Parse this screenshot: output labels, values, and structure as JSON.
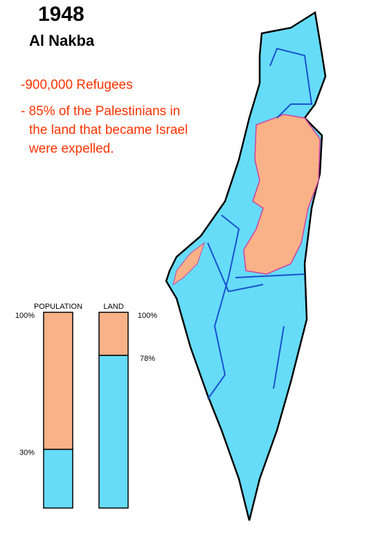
{
  "header": {
    "title": "1948",
    "subtitle": "Al Nakba"
  },
  "bullets": [
    [
      "-900,000 Refugees"
    ],
    [
      "- 85% of the Palestinians in",
      "the land that became Israel",
      "were expelled."
    ]
  ],
  "chart_data": {
    "type": "bar",
    "stacked": true,
    "categories": [
      "POPULATION",
      "LAND"
    ],
    "series": [
      {
        "color": "#66dcf8",
        "values": [
          30,
          78
        ]
      },
      {
        "color": "#f9b287",
        "values": [
          70,
          22
        ]
      }
    ],
    "ylim": [
      0,
      100
    ],
    "yticks": [
      {
        "value": 30,
        "label": "30%"
      },
      {
        "value": 100,
        "label": "100%"
      }
    ],
    "y2lim": [
      0,
      100
    ],
    "y2ticks": [
      {
        "value": 78,
        "label": "78%"
      },
      {
        "value": 100,
        "label": "100%"
      }
    ]
  }
}
